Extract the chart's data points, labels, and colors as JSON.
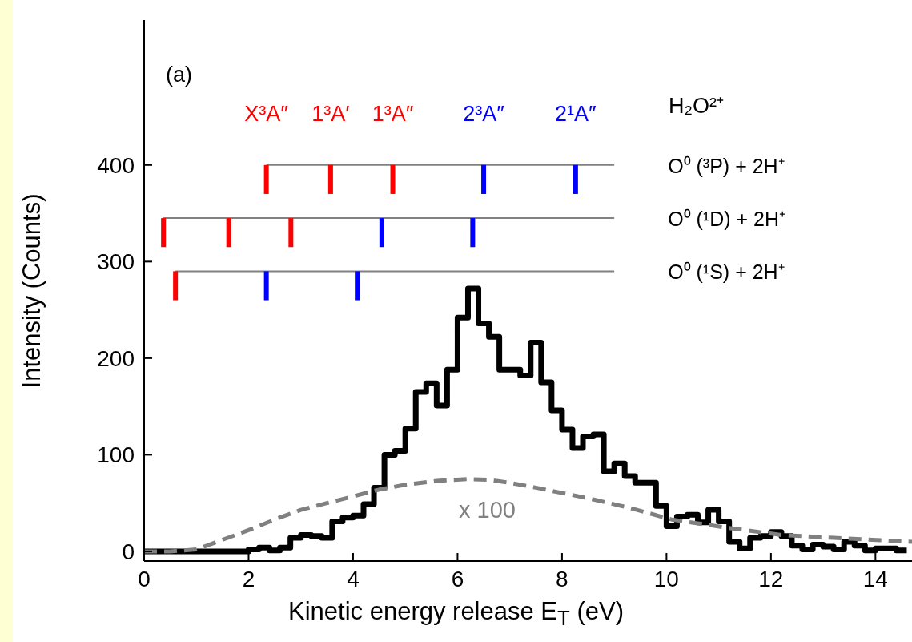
{
  "chart_data": {
    "type": "histogram",
    "xlabel": "Kinetic energy release  E$_{T}$ (eV)",
    "ylabel": "Intensity (Counts)",
    "xlim": [
      0,
      14.7
    ],
    "ylim": [
      -10,
      550
    ],
    "xticks": [
      0,
      2,
      4,
      6,
      8,
      10,
      12,
      14
    ],
    "yticks": [
      0,
      100,
      200,
      300,
      400
    ],
    "color": "#000000",
    "bins": [
      0,
      0.2,
      0.4,
      0.6,
      0.8,
      1.0,
      1.2,
      1.4,
      1.6,
      1.8,
      2.0,
      2.2,
      2.4,
      2.6,
      2.8,
      3.0,
      3.2,
      3.4,
      3.6,
      3.8,
      4.0,
      4.2,
      4.4,
      4.6,
      4.8,
      5.0,
      5.2,
      5.4,
      5.6,
      5.8,
      6.0,
      6.2,
      6.4,
      6.6,
      6.8,
      7.0,
      7.2,
      7.4,
      7.6,
      7.8,
      8.0,
      8.2,
      8.4,
      8.6,
      8.8,
      9.0,
      9.2,
      9.4,
      9.6,
      9.8,
      10.0,
      10.2,
      10.4,
      10.6,
      10.8,
      11.0,
      11.2,
      11.4,
      11.6,
      11.8,
      12.0,
      12.2,
      12.4,
      12.6,
      12.8,
      13.0,
      13.2,
      13.4,
      13.6,
      13.8,
      14.0,
      14.2,
      14.4,
      14.6
    ],
    "values": [
      0,
      0,
      0,
      0,
      0,
      0,
      0,
      0,
      0,
      0,
      2,
      4,
      1,
      4,
      14,
      17,
      16,
      14,
      31,
      35,
      37,
      49,
      66,
      100,
      104,
      127,
      165,
      174,
      151,
      188,
      242,
      272,
      236,
      222,
      188,
      188,
      182,
      216,
      175,
      146,
      126,
      107,
      119,
      121,
      83,
      91,
      78,
      71,
      71,
      47,
      26,
      36,
      38,
      30,
      43,
      31,
      10,
      3,
      14,
      16,
      20,
      16,
      6,
      2,
      7,
      5,
      2,
      10,
      6,
      1,
      3,
      3,
      1
    ],
    "series": [
      {
        "type": "line",
        "color": "#808080",
        "line_style": "dashed",
        "x": [
          0,
          0.5,
          1.0,
          1.3,
          2.0,
          2.5,
          3.0,
          3.5,
          4.0,
          4.5,
          5.0,
          5.6,
          6.2,
          6.6,
          7.0,
          7.5,
          8.5,
          9.3,
          10.1,
          11.1,
          12.2,
          13.2,
          14.7
        ],
        "values": [
          0,
          0,
          2,
          8,
          22,
          33,
          43,
          50,
          57,
          64,
          69,
          73,
          75,
          74,
          71,
          66,
          55,
          45,
          33,
          25,
          17,
          14,
          10
        ]
      },
      {
        "type": "line",
        "name": "O⁰ (³P) + 2H⁺",
        "color": "#808080",
        "line_style": "solid",
        "x": [
          2.34,
          9.0
        ],
        "values": [
          400,
          400
        ]
      },
      {
        "type": "line",
        "name": "O⁰ (¹D) + 2H⁺",
        "color": "#808080",
        "line_style": "solid",
        "x": [
          0.37,
          9.0
        ],
        "values": [
          345,
          345
        ]
      },
      {
        "type": "line",
        "name": "O⁰ (¹S) + 2H⁺",
        "color": "#808080",
        "line_style": "solid",
        "x": [
          0.6,
          9.0
        ],
        "values": [
          290,
          290
        ]
      },
      {
        "type": "line",
        "name": "X³A″",
        "color": "#ff0000",
        "x": [
          2.34,
          2.34
        ],
        "values": [
          400,
          370
        ]
      },
      {
        "type": "line",
        "name": "1³A′",
        "color": "#ff0000",
        "x": [
          3.57,
          3.57
        ],
        "values": [
          400,
          370
        ]
      },
      {
        "type": "line",
        "name": "1³A″",
        "color": "#ff0000",
        "x": [
          4.76,
          4.76
        ],
        "values": [
          400,
          370
        ]
      },
      {
        "type": "line",
        "name": "2³A″",
        "color": "#0000ff",
        "x": [
          6.5,
          6.5
        ],
        "values": [
          400,
          370
        ]
      },
      {
        "type": "line",
        "name": "2¹A″",
        "color": "#0000ff",
        "x": [
          8.26,
          8.26
        ],
        "values": [
          400,
          370
        ]
      },
      {
        "type": "line",
        "color": "#ff0000",
        "x": [
          0.37,
          0.37
        ],
        "values": [
          345,
          315
        ]
      },
      {
        "type": "line",
        "color": "#ff0000",
        "x": [
          1.62,
          1.62
        ],
        "values": [
          345,
          315
        ]
      },
      {
        "type": "line",
        "color": "#ff0000",
        "x": [
          2.81,
          2.81
        ],
        "values": [
          345,
          315
        ]
      },
      {
        "type": "line",
        "color": "#0000ff",
        "x": [
          4.55,
          4.55
        ],
        "values": [
          345,
          315
        ]
      },
      {
        "type": "line",
        "color": "#0000ff",
        "x": [
          6.29,
          6.29
        ],
        "values": [
          345,
          315
        ]
      },
      {
        "type": "line",
        "color": "#ff0000",
        "x": [
          0.6,
          0.6
        ],
        "values": [
          290,
          260
        ]
      },
      {
        "type": "line",
        "color": "#0000ff",
        "x": [
          2.34,
          2.34
        ],
        "values": [
          290,
          260
        ]
      },
      {
        "type": "line",
        "color": "#0000ff",
        "x": [
          4.08,
          4.08
        ],
        "values": [
          290,
          260
        ]
      }
    ],
    "annotations": [
      "(a)",
      "H₂O²⁺",
      "x 100"
    ]
  }
}
